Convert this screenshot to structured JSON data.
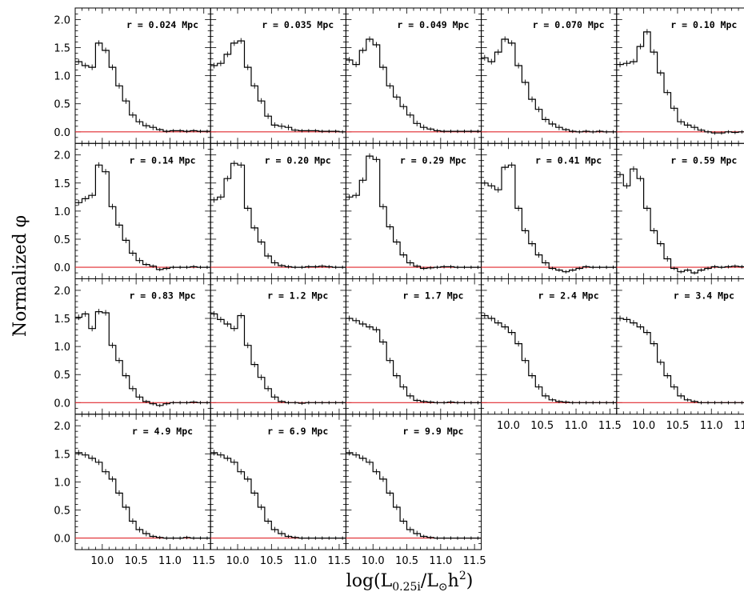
{
  "chart_data": {
    "type": "line",
    "layout": {
      "rows": 4,
      "cols": 5
    },
    "xlabel": "log(L0.25i/L⊙h2)",
    "ylabel": "Normalized φ",
    "xlim": [
      9.6,
      11.6
    ],
    "ylim": [
      -0.12,
      2.12
    ],
    "x_ticks": [
      "10.0",
      "10.5",
      "11.0",
      "11.5"
    ],
    "x_tick_values": [
      10.0,
      10.5,
      11.0,
      11.5
    ],
    "y_ticks": [
      "0.0",
      "0.5",
      "1.0",
      "1.5",
      "2.0"
    ],
    "y_tick_values": [
      0.0,
      0.5,
      1.0,
      1.5,
      2.0
    ],
    "zero_line": {
      "y": 0.0,
      "color": "#e0282e"
    },
    "line_color": "#000000",
    "bin_edges": [
      9.6,
      9.7,
      9.8,
      9.9,
      10.0,
      10.1,
      10.2,
      10.3,
      10.4,
      10.5,
      10.6,
      10.7,
      10.8,
      10.9,
      11.0,
      11.1,
      11.2,
      11.3,
      11.4,
      11.5,
      11.6
    ],
    "panels": [
      {
        "label": "r = 0.024 Mpc",
        "values": [
          1.25,
          1.18,
          1.15,
          1.58,
          1.45,
          1.15,
          0.82,
          0.55,
          0.3,
          0.18,
          0.11,
          0.08,
          0.04,
          0.01,
          0.02,
          0.02,
          0.01,
          0.02,
          0.01,
          0.01
        ]
      },
      {
        "label": "r = 0.035 Mpc",
        "values": [
          1.18,
          1.22,
          1.38,
          1.58,
          1.62,
          1.15,
          0.82,
          0.55,
          0.28,
          0.12,
          0.1,
          0.08,
          0.03,
          0.02,
          0.02,
          0.02,
          0.01,
          0.01,
          0.01,
          0.0
        ]
      },
      {
        "label": "r = 0.049 Mpc",
        "values": [
          1.28,
          1.2,
          1.45,
          1.65,
          1.55,
          1.15,
          0.82,
          0.62,
          0.45,
          0.3,
          0.15,
          0.08,
          0.05,
          0.02,
          0.01,
          0.01,
          0.01,
          0.01,
          0.01,
          0.01
        ]
      },
      {
        "label": "r = 0.070 Mpc",
        "values": [
          1.32,
          1.25,
          1.42,
          1.65,
          1.58,
          1.18,
          0.88,
          0.58,
          0.4,
          0.22,
          0.14,
          0.08,
          0.04,
          0.01,
          0.0,
          0.01,
          0.0,
          0.01,
          0.0,
          0.0
        ]
      },
      {
        "label": "r = 0.10 Mpc",
        "values": [
          1.2,
          1.22,
          1.25,
          1.52,
          1.78,
          1.42,
          1.05,
          0.7,
          0.42,
          0.18,
          0.12,
          0.08,
          0.03,
          0.0,
          -0.02,
          -0.02,
          0.0,
          -0.01,
          0.0,
          0.0
        ]
      },
      {
        "label": "r = 0.14 Mpc",
        "values": [
          1.15,
          1.22,
          1.28,
          1.82,
          1.7,
          1.08,
          0.75,
          0.48,
          0.25,
          0.12,
          0.05,
          0.02,
          -0.04,
          -0.02,
          0.0,
          0.0,
          0.0,
          0.01,
          0.0,
          0.0
        ]
      },
      {
        "label": "r = 0.20 Mpc",
        "values": [
          1.2,
          1.25,
          1.58,
          1.85,
          1.82,
          1.05,
          0.7,
          0.45,
          0.2,
          0.08,
          0.03,
          0.01,
          0.0,
          0.0,
          0.01,
          0.01,
          0.02,
          0.01,
          0.0,
          0.0
        ]
      },
      {
        "label": "r = 0.29 Mpc",
        "values": [
          1.25,
          1.28,
          1.55,
          1.98,
          1.92,
          1.08,
          0.72,
          0.45,
          0.22,
          0.08,
          0.02,
          -0.02,
          -0.01,
          0.0,
          0.01,
          0.01,
          0.0,
          0.0,
          0.0,
          0.0
        ]
      },
      {
        "label": "r = 0.41 Mpc",
        "values": [
          1.5,
          1.45,
          1.38,
          1.78,
          1.82,
          1.05,
          0.65,
          0.42,
          0.22,
          0.08,
          -0.02,
          -0.05,
          -0.08,
          -0.05,
          -0.02,
          0.01,
          0.0,
          0.0,
          0.0,
          0.0
        ]
      },
      {
        "label": "r = 0.59 Mpc",
        "values": [
          1.65,
          1.45,
          1.75,
          1.58,
          1.05,
          0.65,
          0.42,
          0.15,
          -0.02,
          -0.08,
          -0.05,
          -0.1,
          -0.05,
          -0.02,
          0.01,
          0.0,
          0.01,
          0.02,
          0.01,
          0.01
        ]
      },
      {
        "label": "r = 0.83 Mpc",
        "values": [
          1.52,
          1.58,
          1.32,
          1.62,
          1.6,
          1.02,
          0.75,
          0.48,
          0.25,
          0.1,
          0.02,
          -0.02,
          -0.05,
          -0.02,
          0.0,
          0.0,
          0.0,
          0.01,
          0.0,
          0.0
        ]
      },
      {
        "label": "r = 1.2 Mpc",
        "values": [
          1.58,
          1.48,
          1.4,
          1.32,
          1.55,
          1.02,
          0.68,
          0.45,
          0.25,
          0.1,
          0.02,
          0.0,
          0.0,
          -0.01,
          0.0,
          0.0,
          0.0,
          0.0,
          0.0,
          0.0
        ]
      },
      {
        "label": "r = 1.7 Mpc",
        "values": [
          1.5,
          1.46,
          1.4,
          1.35,
          1.3,
          1.08,
          0.75,
          0.48,
          0.28,
          0.12,
          0.04,
          0.02,
          0.01,
          0.0,
          0.0,
          0.01,
          0.0,
          0.0,
          0.0,
          0.0
        ]
      },
      {
        "label": "r = 2.4 Mpc",
        "values": [
          1.55,
          1.5,
          1.42,
          1.35,
          1.25,
          1.05,
          0.75,
          0.48,
          0.28,
          0.12,
          0.05,
          0.02,
          0.01,
          0.0,
          0.0,
          0.0,
          0.0,
          0.0,
          0.0,
          0.0
        ]
      },
      {
        "label": "r = 3.4 Mpc",
        "values": [
          1.5,
          1.48,
          1.42,
          1.35,
          1.25,
          1.05,
          0.72,
          0.48,
          0.28,
          0.12,
          0.05,
          0.02,
          0.0,
          0.0,
          0.0,
          0.0,
          0.0,
          0.0,
          0.0,
          0.0
        ]
      },
      {
        "label": "r = 4.9 Mpc",
        "values": [
          1.52,
          1.48,
          1.42,
          1.35,
          1.18,
          1.05,
          0.8,
          0.55,
          0.3,
          0.15,
          0.08,
          0.03,
          0.01,
          0.0,
          0.0,
          0.0,
          0.01,
          0.0,
          0.0,
          0.0
        ]
      },
      {
        "label": "r = 6.9 Mpc",
        "values": [
          1.52,
          1.48,
          1.42,
          1.35,
          1.18,
          1.05,
          0.8,
          0.55,
          0.3,
          0.15,
          0.08,
          0.03,
          0.01,
          0.0,
          0.0,
          0.0,
          0.0,
          0.0,
          0.0,
          0.0
        ]
      },
      {
        "label": "r = 9.9 Mpc",
        "values": [
          1.52,
          1.48,
          1.42,
          1.35,
          1.18,
          1.05,
          0.8,
          0.55,
          0.3,
          0.15,
          0.08,
          0.03,
          0.01,
          0.0,
          0.0,
          0.0,
          0.0,
          0.0,
          0.0,
          0.0
        ]
      }
    ]
  }
}
